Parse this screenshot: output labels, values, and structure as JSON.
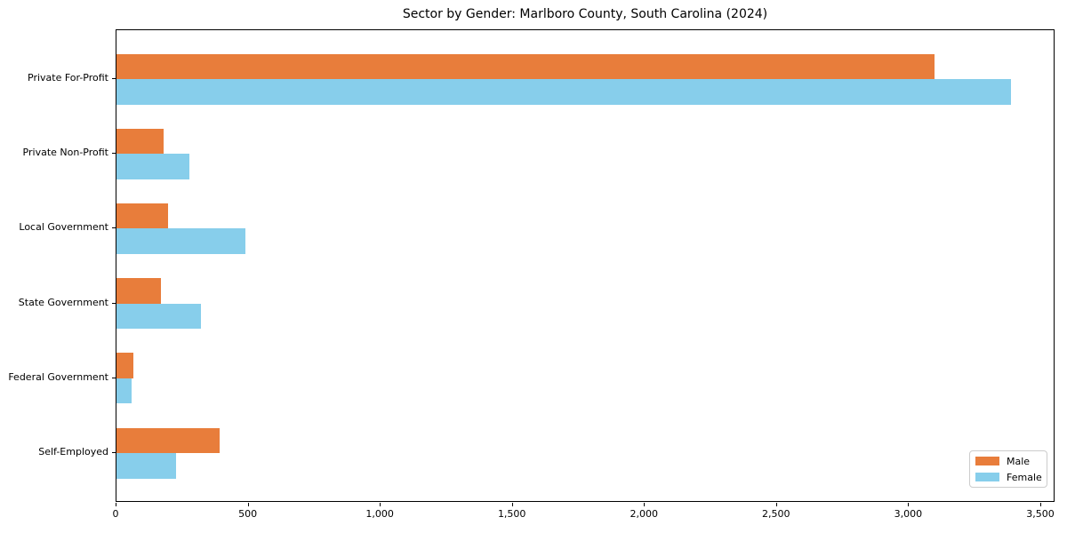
{
  "chart_data": {
    "type": "bar",
    "orientation": "horizontal",
    "title": "Sector by Gender: Marlboro County, South Carolina (2024)",
    "categories": [
      "Private For-Profit",
      "Private Non-Profit",
      "Local Government",
      "State Government",
      "Federal Government",
      "Self-Employed"
    ],
    "series": [
      {
        "name": "Male",
        "color": "#E87D3B",
        "values": [
          3095,
          177,
          195,
          167,
          64,
          389
        ]
      },
      {
        "name": "Female",
        "color": "#87CEEB",
        "values": [
          3385,
          275,
          488,
          318,
          56,
          227
        ]
      }
    ],
    "xlabel": "",
    "ylabel": "",
    "xlim": [
      0,
      3554
    ],
    "x_ticks": [
      0,
      500,
      1000,
      1500,
      2000,
      2500,
      3000,
      3500
    ],
    "x_tick_labels": [
      "0",
      "500",
      "1,000",
      "1,500",
      "2,000",
      "2,500",
      "3,000",
      "3,500"
    ],
    "grid": false,
    "legend": {
      "position": "lower right",
      "entries": [
        "Male",
        "Female"
      ]
    }
  }
}
